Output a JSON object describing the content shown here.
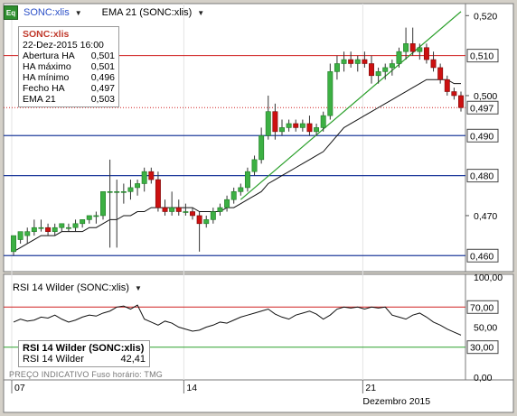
{
  "toolbar": {
    "symbol_label": "SONC:xlis",
    "ema_label": "EMA 21 (SONC:xlis)"
  },
  "info": {
    "title": "SONC:xlis",
    "date": "22-Dez-2015 16:00",
    "rows": [
      {
        "label": "Abertura HA",
        "value": "0,501"
      },
      {
        "label": "HA máximo",
        "value": "0,501"
      },
      {
        "label": "HA mínimo",
        "value": "0,496"
      },
      {
        "label": "Fecho HA",
        "value": "0,497"
      },
      {
        "label": "EMA 21",
        "value": "0,503"
      }
    ]
  },
  "price_axis": {
    "ticks": [
      "0,520",
      "0,500",
      "0,470"
    ],
    "boxed": [
      "0,510",
      "0,497",
      "0,490",
      "0,480",
      "0,460"
    ]
  },
  "rsi": {
    "legend": "RSI 14 Wilder (SONC:xlis)",
    "box_title": "RSI 14 Wilder (SONC:xlis)",
    "box_label": "RSI 14 Wilder",
    "box_value": "42,41",
    "ticks": [
      "100,00",
      "50,00",
      "0,00"
    ],
    "boxed": [
      "70,00",
      "30,00"
    ]
  },
  "footer": "PREÇO INDICATIVO   Fuso horário: TMG",
  "time_axis": {
    "labels": [
      "07",
      "14",
      "21"
    ],
    "month": "Dezembro 2015"
  },
  "colors": {
    "up": "#3cb043",
    "down": "#cc1010",
    "hline": "#1f3b9c",
    "resist": "#d02020",
    "trend": "#2ca02c"
  },
  "chart_data": {
    "type": "candlestick",
    "series_name": "SONC:xlis",
    "ylim": [
      0.456,
      0.523
    ],
    "candles": [
      [
        0.461,
        0.465,
        0.46,
        0.465
      ],
      [
        0.464,
        0.466,
        0.463,
        0.466
      ],
      [
        0.465,
        0.467,
        0.463,
        0.466
      ],
      [
        0.466,
        0.469,
        0.465,
        0.467
      ],
      [
        0.467,
        0.469,
        0.466,
        0.467
      ],
      [
        0.467,
        0.468,
        0.465,
        0.466
      ],
      [
        0.466,
        0.468,
        0.465,
        0.467
      ],
      [
        0.467,
        0.468,
        0.466,
        0.468
      ],
      [
        0.467,
        0.468,
        0.466,
        0.467
      ],
      [
        0.467,
        0.469,
        0.466,
        0.468
      ],
      [
        0.468,
        0.469,
        0.467,
        0.469
      ],
      [
        0.469,
        0.47,
        0.468,
        0.47
      ],
      [
        0.47,
        0.471,
        0.468,
        0.47
      ],
      [
        0.47,
        0.476,
        0.469,
        0.476
      ],
      [
        0.476,
        0.484,
        0.462,
        0.476
      ],
      [
        0.476,
        0.479,
        0.462,
        0.476
      ],
      [
        0.476,
        0.478,
        0.473,
        0.476
      ],
      [
        0.476,
        0.479,
        0.474,
        0.477
      ],
      [
        0.477,
        0.479,
        0.475,
        0.478
      ],
      [
        0.478,
        0.482,
        0.476,
        0.481
      ],
      [
        0.481,
        0.482,
        0.478,
        0.479
      ],
      [
        0.479,
        0.481,
        0.471,
        0.472
      ],
      [
        0.472,
        0.474,
        0.47,
        0.471
      ],
      [
        0.471,
        0.476,
        0.47,
        0.472
      ],
      [
        0.472,
        0.474,
        0.47,
        0.471
      ],
      [
        0.471,
        0.473,
        0.47,
        0.471
      ],
      [
        0.471,
        0.472,
        0.469,
        0.47
      ],
      [
        0.47,
        0.471,
        0.461,
        0.468
      ],
      [
        0.468,
        0.47,
        0.467,
        0.469
      ],
      [
        0.469,
        0.472,
        0.468,
        0.471
      ],
      [
        0.471,
        0.473,
        0.47,
        0.472
      ],
      [
        0.472,
        0.475,
        0.471,
        0.474
      ],
      [
        0.474,
        0.477,
        0.473,
        0.476
      ],
      [
        0.476,
        0.478,
        0.475,
        0.477
      ],
      [
        0.477,
        0.482,
        0.476,
        0.481
      ],
      [
        0.481,
        0.485,
        0.48,
        0.484
      ],
      [
        0.484,
        0.492,
        0.483,
        0.49
      ],
      [
        0.49,
        0.5,
        0.489,
        0.496
      ],
      [
        0.496,
        0.498,
        0.489,
        0.491
      ],
      [
        0.491,
        0.494,
        0.49,
        0.492
      ],
      [
        0.492,
        0.494,
        0.491,
        0.493
      ],
      [
        0.493,
        0.494,
        0.491,
        0.492
      ],
      [
        0.492,
        0.494,
        0.491,
        0.493
      ],
      [
        0.493,
        0.495,
        0.49,
        0.491
      ],
      [
        0.491,
        0.493,
        0.49,
        0.492
      ],
      [
        0.492,
        0.496,
        0.491,
        0.495
      ],
      [
        0.495,
        0.508,
        0.494,
        0.506
      ],
      [
        0.506,
        0.51,
        0.504,
        0.508
      ],
      [
        0.508,
        0.511,
        0.506,
        0.509
      ],
      [
        0.509,
        0.511,
        0.507,
        0.508
      ],
      [
        0.508,
        0.51,
        0.506,
        0.509
      ],
      [
        0.509,
        0.511,
        0.507,
        0.508
      ],
      [
        0.508,
        0.51,
        0.503,
        0.505
      ],
      [
        0.505,
        0.507,
        0.503,
        0.506
      ],
      [
        0.506,
        0.508,
        0.504,
        0.507
      ],
      [
        0.507,
        0.509,
        0.505,
        0.508
      ],
      [
        0.508,
        0.512,
        0.507,
        0.511
      ],
      [
        0.511,
        0.517,
        0.509,
        0.513
      ],
      [
        0.513,
        0.517,
        0.51,
        0.511
      ],
      [
        0.511,
        0.513,
        0.509,
        0.512
      ],
      [
        0.512,
        0.513,
        0.508,
        0.509
      ],
      [
        0.509,
        0.511,
        0.506,
        0.507
      ],
      [
        0.507,
        0.508,
        0.503,
        0.504
      ],
      [
        0.504,
        0.505,
        0.5,
        0.501
      ],
      [
        0.501,
        0.502,
        0.499,
        0.5
      ],
      [
        0.5,
        0.501,
        0.496,
        0.497
      ]
    ],
    "ema": [
      0.461,
      0.462,
      0.463,
      0.464,
      0.465,
      0.465,
      0.465,
      0.466,
      0.466,
      0.466,
      0.466,
      0.467,
      0.467,
      0.468,
      0.469,
      0.469,
      0.47,
      0.47,
      0.471,
      0.471,
      0.472,
      0.472,
      0.472,
      0.472,
      0.472,
      0.472,
      0.472,
      0.471,
      0.471,
      0.471,
      0.471,
      0.472,
      0.472,
      0.473,
      0.474,
      0.475,
      0.476,
      0.478,
      0.479,
      0.48,
      0.481,
      0.482,
      0.483,
      0.484,
      0.485,
      0.486,
      0.488,
      0.49,
      0.492,
      0.493,
      0.494,
      0.495,
      0.496,
      0.497,
      0.498,
      0.499,
      0.5,
      0.501,
      0.502,
      0.503,
      0.504,
      0.504,
      0.504,
      0.504,
      0.503,
      0.503
    ],
    "hlines": [
      0.49,
      0.48,
      0.46
    ],
    "resistance": 0.51,
    "last_close": 0.497,
    "trendline": [
      [
        33,
        0.474
      ],
      [
        65,
        0.521
      ]
    ],
    "rsi_values": [
      55,
      58,
      56,
      57,
      60,
      59,
      62,
      58,
      55,
      57,
      60,
      62,
      61,
      64,
      66,
      70,
      71,
      68,
      72,
      58,
      55,
      52,
      56,
      54,
      50,
      48,
      46,
      47,
      50,
      52,
      55,
      54,
      57,
      60,
      62,
      64,
      66,
      68,
      63,
      60,
      58,
      62,
      64,
      66,
      63,
      58,
      62,
      68,
      70,
      69,
      70,
      68,
      70,
      69,
      70,
      62,
      60,
      58,
      62,
      64,
      60,
      55,
      52,
      48,
      45,
      42
    ],
    "rsi_ylim": [
      0,
      100
    ],
    "rsi_levels": [
      70,
      30
    ]
  }
}
